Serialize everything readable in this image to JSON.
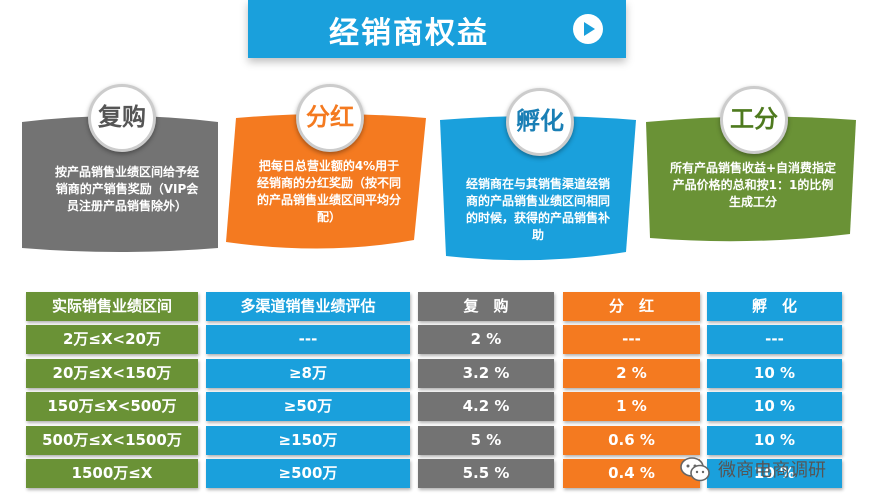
{
  "banner": {
    "title": "经销商权益",
    "icon": "play-icon"
  },
  "cards": [
    {
      "title": "复购",
      "desc": "按产品销售业绩区间给予经销商的产销售奖励（VIP会员注册产品销售除外）",
      "color": "#737373"
    },
    {
      "title": "分红",
      "desc": "把每日总营业额的4%用于经销商的分红奖励（按不同的产品销售业绩区间平均分配）",
      "color": "#f47a20"
    },
    {
      "title": "孵化",
      "desc": "经销商在与其销售渠道经销商的产品销售业绩区间相同的时候，获得的产品销售补助",
      "color": "#1aa0dc"
    },
    {
      "title": "工分",
      "desc": "所有产品销售收益+自消费指定产品价格的总和按1：1的比例生成工分",
      "color": "#6a9236"
    }
  ],
  "table": {
    "headers": [
      "实际销售业绩区间",
      "多渠道销售业绩评估",
      "复　购",
      "分　红",
      "孵　化"
    ],
    "rows": [
      [
        "2万≤X<20万",
        "---",
        "2 %",
        "---",
        "---"
      ],
      [
        "20万≤X<150万",
        "≥8万",
        "3.2 %",
        "2 %",
        "10 %"
      ],
      [
        "150万≤X<500万",
        "≥50万",
        "4.2 %",
        "1 %",
        "10 %"
      ],
      [
        "500万≤X<1500万",
        "≥150万",
        "5 %",
        "0.6 %",
        "10 %"
      ],
      [
        "1500万≤X",
        "≥500万",
        "5.5 %",
        "0.4 %",
        "10 %"
      ]
    ]
  },
  "watermark": {
    "text": "微商电商调研",
    "icon": "wechat-icon"
  }
}
